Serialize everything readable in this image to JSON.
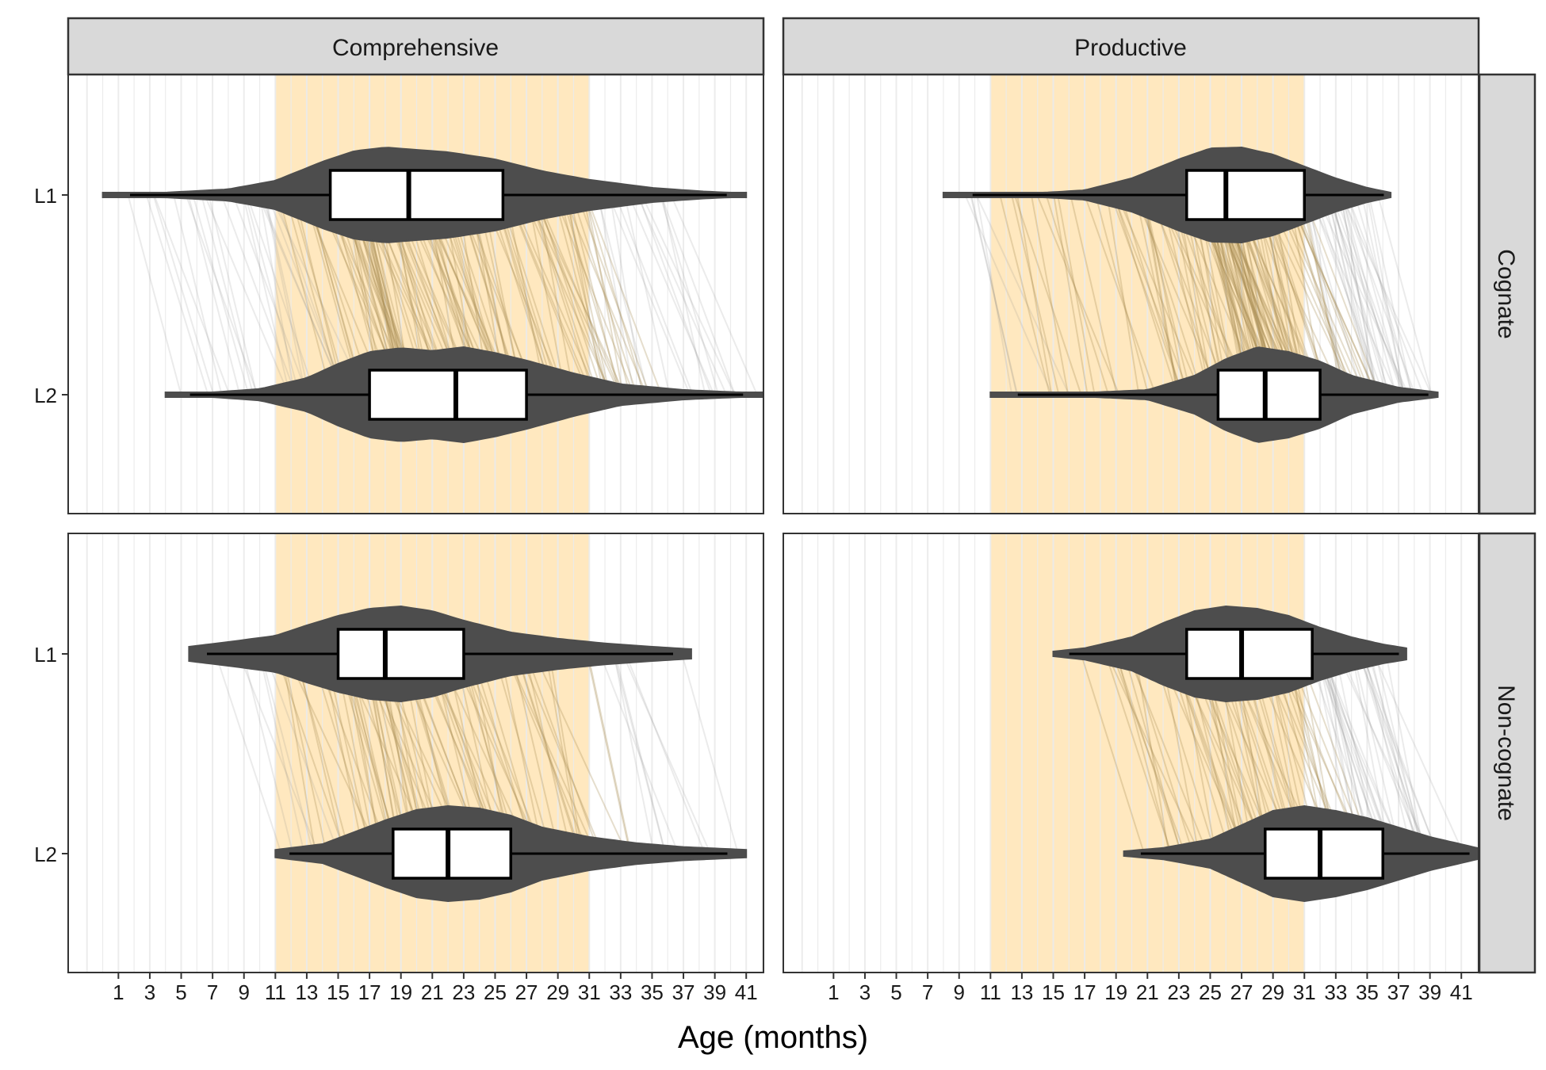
{
  "chart_data": {
    "type": "violin",
    "xlabel": "Age (months)",
    "x_ticks": [
      1,
      3,
      5,
      7,
      9,
      11,
      13,
      15,
      17,
      19,
      21,
      23,
      25,
      27,
      29,
      31,
      33,
      35,
      37,
      39,
      41
    ],
    "xlim": [
      -2.2,
      42.1
    ],
    "highlight_range": {
      "comprehensive": [
        11,
        31
      ],
      "productive": [
        11,
        31
      ]
    },
    "column_labels": [
      "Comprehensive",
      "Productive"
    ],
    "row_labels": [
      "Cognate",
      "Non-cognate"
    ],
    "y_categories": [
      "L1",
      "L2"
    ],
    "panels": [
      {
        "column": "Comprehensive",
        "row": "Cognate",
        "violins": [
          {
            "group": "L1",
            "min": 0,
            "q1": 14.5,
            "median": 19.5,
            "q3": 25.5,
            "max": 41.0,
            "density": [
              [
                0,
                0.03
              ],
              [
                4,
                0.05
              ],
              [
                8,
                0.12
              ],
              [
                11,
                0.3
              ],
              [
                14,
                0.7
              ],
              [
                16,
                0.92
              ],
              [
                18,
                1.0
              ],
              [
                20,
                0.95
              ],
              [
                22,
                0.9
              ],
              [
                25,
                0.75
              ],
              [
                28,
                0.5
              ],
              [
                31,
                0.32
              ],
              [
                35,
                0.15
              ],
              [
                38,
                0.08
              ],
              [
                41,
                0.03
              ]
            ]
          },
          {
            "group": "L2",
            "min": 4,
            "q1": 17,
            "median": 22.5,
            "q3": 27,
            "max": 42.0,
            "density": [
              [
                4,
                0.03
              ],
              [
                7,
                0.05
              ],
              [
                10,
                0.12
              ],
              [
                13,
                0.35
              ],
              [
                15,
                0.65
              ],
              [
                17,
                0.9
              ],
              [
                19,
                0.98
              ],
              [
                21,
                0.92
              ],
              [
                23,
                1.0
              ],
              [
                25,
                0.88
              ],
              [
                27,
                0.72
              ],
              [
                30,
                0.45
              ],
              [
                33,
                0.22
              ],
              [
                37,
                0.1
              ],
              [
                42,
                0.03
              ]
            ]
          }
        ],
        "pairs": 160
      },
      {
        "column": "Productive",
        "row": "Cognate",
        "violins": [
          {
            "group": "L1",
            "min": 8,
            "q1": 23.5,
            "median": 26,
            "q3": 31,
            "max": 36.5,
            "density": [
              [
                8,
                0.03
              ],
              [
                14,
                0.04
              ],
              [
                17,
                0.1
              ],
              [
                20,
                0.35
              ],
              [
                23,
                0.75
              ],
              [
                25,
                0.98
              ],
              [
                27,
                1.0
              ],
              [
                29,
                0.85
              ],
              [
                31,
                0.6
              ],
              [
                33,
                0.35
              ],
              [
                35,
                0.15
              ],
              [
                36.5,
                0.05
              ]
            ]
          },
          {
            "group": "L2",
            "min": 11,
            "q1": 25.5,
            "median": 28.5,
            "q3": 32,
            "max": 39.5,
            "density": [
              [
                11,
                0.03
              ],
              [
                17,
                0.04
              ],
              [
                21,
                0.1
              ],
              [
                24,
                0.4
              ],
              [
                26,
                0.75
              ],
              [
                28,
                1.0
              ],
              [
                30,
                0.9
              ],
              [
                32,
                0.7
              ],
              [
                34,
                0.4
              ],
              [
                37,
                0.15
              ],
              [
                39.5,
                0.05
              ]
            ]
          }
        ],
        "pairs": 160
      },
      {
        "column": "Comprehensive",
        "row": "Non-cognate",
        "violins": [
          {
            "group": "L1",
            "min": 5.5,
            "q1": 15,
            "median": 18,
            "q3": 23,
            "max": 37.5,
            "density": [
              [
                5.5,
                0.15
              ],
              [
                8,
                0.25
              ],
              [
                11,
                0.38
              ],
              [
                13,
                0.6
              ],
              [
                15,
                0.8
              ],
              [
                17,
                0.95
              ],
              [
                19,
                1.0
              ],
              [
                21,
                0.9
              ],
              [
                23,
                0.7
              ],
              [
                26,
                0.45
              ],
              [
                29,
                0.32
              ],
              [
                32,
                0.22
              ],
              [
                35,
                0.15
              ],
              [
                37.5,
                0.1
              ]
            ]
          },
          {
            "group": "L2",
            "min": 11,
            "q1": 18.5,
            "median": 22,
            "q3": 26,
            "max": 41.0,
            "density": [
              [
                11,
                0.08
              ],
              [
                14,
                0.2
              ],
              [
                16,
                0.45
              ],
              [
                18,
                0.7
              ],
              [
                20,
                0.92
              ],
              [
                22,
                1.0
              ],
              [
                24,
                0.95
              ],
              [
                26,
                0.8
              ],
              [
                28,
                0.55
              ],
              [
                31,
                0.35
              ],
              [
                34,
                0.22
              ],
              [
                37,
                0.14
              ],
              [
                41,
                0.08
              ]
            ]
          }
        ],
        "pairs": 90
      },
      {
        "column": "Productive",
        "row": "Non-cognate",
        "violins": [
          {
            "group": "L1",
            "min": 15,
            "q1": 23.5,
            "median": 27,
            "q3": 31.5,
            "max": 37.5,
            "density": [
              [
                15,
                0.05
              ],
              [
                17,
                0.12
              ],
              [
                20,
                0.35
              ],
              [
                22,
                0.65
              ],
              [
                24,
                0.9
              ],
              [
                26,
                1.0
              ],
              [
                28,
                0.95
              ],
              [
                30,
                0.8
              ],
              [
                32,
                0.55
              ],
              [
                34,
                0.35
              ],
              [
                36,
                0.2
              ],
              [
                37.5,
                0.12
              ]
            ]
          },
          {
            "group": "L2",
            "min": 19.5,
            "q1": 28.5,
            "median": 32,
            "q3": 36,
            "max": 42.0,
            "density": [
              [
                19.5,
                0.05
              ],
              [
                22,
                0.12
              ],
              [
                25,
                0.3
              ],
              [
                27,
                0.6
              ],
              [
                29,
                0.9
              ],
              [
                31,
                1.0
              ],
              [
                33,
                0.9
              ],
              [
                35,
                0.75
              ],
              [
                37,
                0.55
              ],
              [
                39,
                0.35
              ],
              [
                42,
                0.12
              ]
            ]
          }
        ],
        "pairs": 90
      }
    ]
  },
  "colors": {
    "violin_fill": "#4d4d4d",
    "box_fill": "#ffffff",
    "box_stroke": "#000000",
    "highlight_band": "#ffe8bf",
    "strip_fill": "#d9d9d9",
    "grid_line": "#ebebeb",
    "pair_line": "#7f7f7f",
    "pair_line_highlight": "#a68a50"
  }
}
